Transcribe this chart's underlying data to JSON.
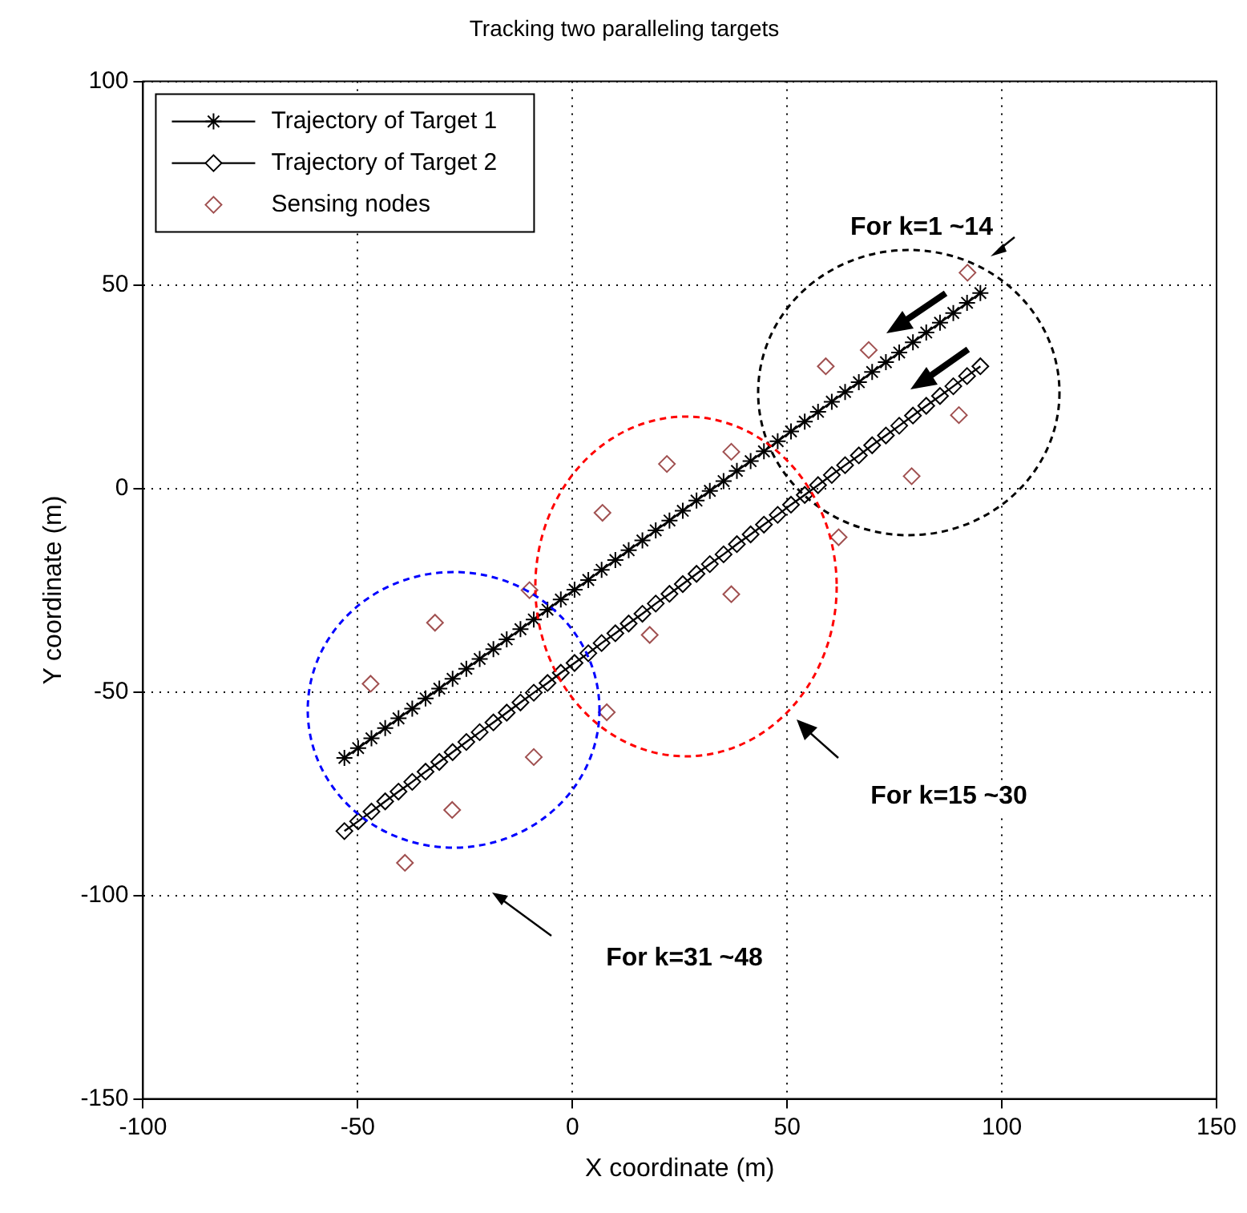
{
  "chart_data": {
    "type": "line",
    "title": "Tracking two paralleling targets",
    "xlabel": "X coordinate (m)",
    "ylabel": "Y coordinate (m)",
    "xlim": [
      -100,
      150
    ],
    "xticks": [
      -100,
      -50,
      0,
      50,
      100,
      150
    ],
    "ylim": [
      -150,
      100
    ],
    "yticks": [
      -150,
      -100,
      -50,
      0,
      50,
      100
    ],
    "grid": true,
    "legend": "top left",
    "annotations": [
      "For k=1 ~14",
      "For k=15 ~30",
      "For k=31 ~48"
    ],
    "series": [
      {
        "name": "Trajectory of Target 1",
        "type": "line",
        "color": "#000000",
        "marker": "cross",
        "line_style": "solid",
        "x": [
          95,
          91.9,
          88.7,
          85.6,
          82.4,
          79.3,
          76.1,
          73,
          69.8,
          66.7,
          63.5,
          60.4,
          57.2,
          54.1,
          50.9,
          47.8,
          44.6,
          41.5,
          38.3,
          35.2,
          32,
          28.9,
          25.7,
          22.6,
          19.4,
          16.3,
          13.1,
          10,
          6.8,
          3.7,
          0.5,
          -2.7,
          -5.8,
          -9,
          -12.1,
          -15.3,
          -18.4,
          -21.6,
          -24.7,
          -27.9,
          -31,
          -34.2,
          -37.3,
          -40.5,
          -43.6,
          -46.8,
          -49.9,
          -53.1
        ],
        "values": [
          48,
          45.6,
          43.1,
          40.7,
          38.3,
          35.9,
          33.4,
          31,
          28.6,
          26.1,
          23.7,
          21.3,
          18.8,
          16.4,
          14,
          11.6,
          9.1,
          6.7,
          4.3,
          1.8,
          -0.6,
          -3,
          -5.5,
          -7.9,
          -10.3,
          -12.8,
          -15.2,
          -17.6,
          -20,
          -22.5,
          -24.9,
          -27.3,
          -29.8,
          -32.2,
          -34.6,
          -37.1,
          -39.5,
          -41.9,
          -44.3,
          -46.8,
          -49.2,
          -51.6,
          -54.1,
          -56.5,
          -58.9,
          -61.4,
          -63.8,
          -66.2
        ]
      },
      {
        "name": "Trajectory of Target 2",
        "type": "line",
        "color": "#000000",
        "marker": "diamond",
        "line_style": "solid",
        "x": [
          95,
          91.9,
          88.7,
          85.6,
          82.4,
          79.3,
          76.1,
          73,
          69.8,
          66.7,
          63.5,
          60.4,
          57.2,
          54.1,
          50.9,
          47.8,
          44.6,
          41.5,
          38.3,
          35.2,
          32,
          28.9,
          25.7,
          22.6,
          19.4,
          16.3,
          13.1,
          10,
          6.8,
          3.7,
          0.5,
          -2.7,
          -5.8,
          -9,
          -12.1,
          -15.3,
          -18.4,
          -21.6,
          -24.7,
          -27.9,
          -31,
          -34.2,
          -37.3,
          -40.5,
          -43.6,
          -46.8,
          -49.9,
          -53.1
        ],
        "values": [
          30,
          27.6,
          25.1,
          22.7,
          20.3,
          17.9,
          15.4,
          13,
          10.6,
          8.1,
          5.7,
          3.3,
          0.8,
          -1.6,
          -4,
          -6.5,
          -8.9,
          -11.3,
          -13.7,
          -16.2,
          -18.6,
          -21,
          -23.5,
          -25.9,
          -28.3,
          -30.8,
          -33.2,
          -35.6,
          -38,
          -40.5,
          -42.9,
          -45.3,
          -47.8,
          -50.2,
          -52.6,
          -55.1,
          -57.5,
          -59.9,
          -62.3,
          -64.8,
          -67.2,
          -69.6,
          -72.1,
          -74.5,
          -76.9,
          -79.4,
          -81.8,
          -84.2
        ]
      },
      {
        "name": "Sensing nodes",
        "type": "scatter",
        "color": "#a05050",
        "marker": "diamond",
        "x": [
          -32,
          -47,
          -10,
          -9,
          -28,
          -39,
          22,
          37,
          7,
          37,
          18,
          62,
          8,
          92,
          69,
          59,
          90,
          79
        ],
        "values": [
          -33,
          -48,
          -25,
          -66,
          -79,
          -92,
          6,
          9,
          -6,
          -26,
          -36,
          -12,
          -55,
          53,
          34,
          30,
          18,
          3
        ]
      }
    ]
  }
}
